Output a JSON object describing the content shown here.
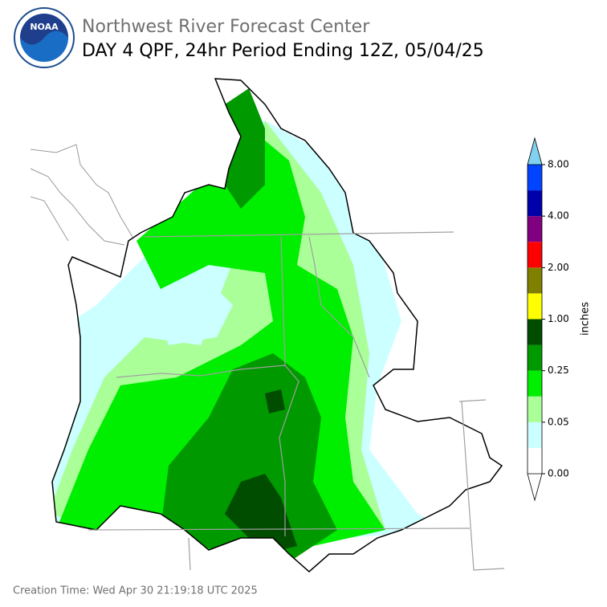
{
  "header": {
    "logo_text": "NOAA",
    "agency": "Northwest River Forecast Center",
    "title": "DAY 4 QPF, 24hr Period Ending 12Z, 05/04/25"
  },
  "legend": {
    "label": "inches",
    "ticks": [
      "0.00",
      "0.05",
      "0.25",
      "1.00",
      "2.00",
      "4.00",
      "8.00"
    ],
    "colors": [
      "#ffffff",
      "#ccffff",
      "#aaff99",
      "#00ee00",
      "#009900",
      "#004d00",
      "#ffff00",
      "#808000",
      "#ff0000",
      "#800080",
      "#0000aa",
      "#0044ff"
    ],
    "under_color": "#ffffff",
    "over_color": "#80d0f0"
  },
  "footer": {
    "creation": "Creation Time: Wed Apr 30 21:19:18 UTC 2025"
  }
}
